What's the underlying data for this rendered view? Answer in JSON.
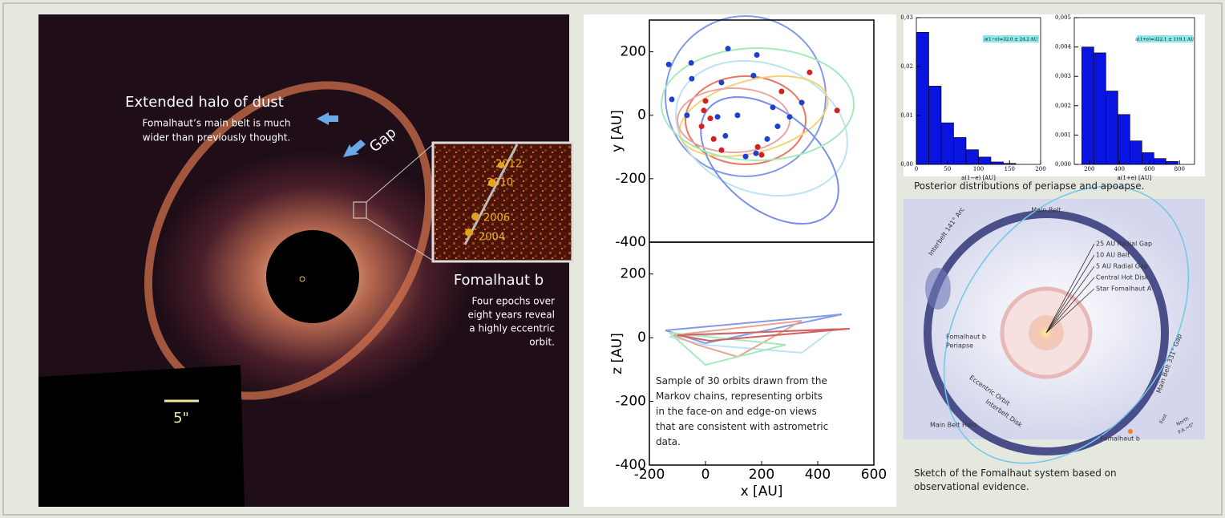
{
  "image_panel": {
    "halo_title": "Extended halo of dust",
    "halo_text": [
      "Fomalhaut’s main belt is much",
      "wider than previously thought."
    ],
    "gap": "Gap",
    "epochs": [
      "2012",
      "2010",
      "2006",
      "2004"
    ],
    "planet_title": "Fomalhaut b",
    "planet_text": [
      "Four epochs over",
      "eight years reveal",
      "a highly eccentric",
      "orbit."
    ],
    "scale": "5\""
  },
  "chart_data": [
    {
      "type": "scatter",
      "ylabel": "y [AU]",
      "xlim": [
        -200,
        600
      ],
      "ylim": [
        -400,
        300
      ],
      "yticks": [
        -400,
        -200,
        0,
        200
      ],
      "series": [
        {
          "color": "#1f3fd0",
          "x": [
            -131,
            -51,
            80,
            183,
            171,
            57,
            -120,
            -66,
            43,
            114,
            240,
            257,
            71,
            180,
            143,
            300,
            220,
            343,
            -49
          ],
          "values": [
            160,
            165,
            210,
            190,
            125,
            103,
            50,
            0,
            -5,
            0,
            25,
            -35,
            -65,
            -120,
            -130,
            -5,
            -75,
            40,
            115
          ]
        },
        {
          "color": "#d42020",
          "x": [
            0,
            17,
            -14,
            29,
            57,
            186,
            200,
            469,
            371,
            271,
            -6
          ],
          "values": [
            45,
            -10,
            -35,
            -75,
            -110,
            -100,
            -125,
            15,
            135,
            75,
            15
          ]
        }
      ]
    },
    {
      "type": "orbits",
      "xlabel": "x [AU]",
      "ylabel": "z [AU]",
      "xlim": [
        -200,
        600
      ],
      "ylim": [
        -400,
        300
      ],
      "xticks": [
        -200,
        0,
        200,
        400,
        600
      ],
      "yticks": [
        -400,
        -200,
        0,
        200
      ],
      "annotation": [
        "Sample of 30 orbits drawn from the",
        "Markov chains, representing orbits",
        "in the face-on and edge-on views",
        "that are consistent with astrometric",
        "data."
      ]
    },
    {
      "type": "histogram",
      "xlabel": "a(1−e) [AU]",
      "annotation": "a(1−e)=32.0 ± 24.2 AU",
      "color": "#0a14e0",
      "bins": [
        0,
        20,
        40,
        60,
        80,
        100,
        120,
        140,
        160
      ],
      "values": [
        0.027,
        0.016,
        0.0085,
        0.0055,
        0.003,
        0.0015,
        0.0005,
        0.0002
      ],
      "xlim": [
        0,
        200
      ],
      "ylim": [
        0,
        0.03
      ],
      "xticks": [
        0,
        50,
        100,
        150,
        200
      ],
      "yticks": [
        {
          "value": 0,
          "label": "0,00"
        },
        {
          "value": 0.01,
          "label": "0,01"
        },
        {
          "value": 0.02,
          "label": "0,02"
        },
        {
          "value": 0.03,
          "label": "0,03"
        }
      ]
    },
    {
      "type": "histogram",
      "xlabel": "a(1+e) [AU]",
      "annotation": "a(1+e)=322.1 ± 119.1 AU",
      "color": "#0a14e0",
      "bins": [
        150,
        230,
        310,
        390,
        470,
        550,
        630,
        710,
        790
      ],
      "values": [
        0.004,
        0.0038,
        0.0025,
        0.0017,
        0.0008,
        0.0004,
        0.0002,
        0.0001
      ],
      "xlim": [
        100,
        900
      ],
      "ylim": [
        0,
        0.005
      ],
      "xticks": [
        200,
        400,
        600,
        800
      ],
      "yticks": [
        {
          "value": 0,
          "label": "0,000"
        },
        {
          "value": 0.001,
          "label": "0,001"
        },
        {
          "value": 0.002,
          "label": "0,002"
        },
        {
          "value": 0.003,
          "label": "0,003"
        },
        {
          "value": 0.004,
          "label": "0,004"
        },
        {
          "value": 0.005,
          "label": "0,005"
        }
      ]
    }
  ],
  "histogram_caption": "Posterior distributions of periapse and apoapse.",
  "sketch": {
    "main_belt": "Main Belt",
    "arc": "Interbelt 141° Arc",
    "gap_labels": [
      "25 AU Radial Gap",
      "10 AU Belt",
      "5 AU Radial Gap",
      "Central Hot Disk",
      "Star Fomalhaut A"
    ],
    "periapse": [
      "Fomalhaut b",
      "Periapse"
    ],
    "eccentric": "Eccentric Orbit",
    "interbelt": "Interbelt Disk",
    "belt_gap": "Main Belt 331° Gap",
    "planet": "Fomalhaut b",
    "halo": "Main Belt Halo",
    "east": "East",
    "north": "North",
    "pa": "P.A.=0°",
    "caption": [
      "Sketch of the Fomalhaut system based on",
      "observational evidence."
    ]
  }
}
